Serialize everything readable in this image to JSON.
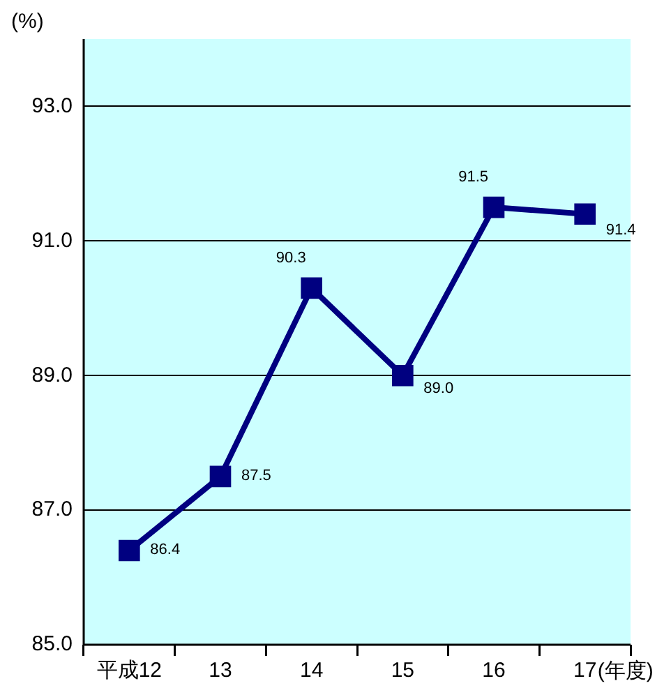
{
  "chart_data": {
    "type": "line",
    "ylabel": "(%)",
    "xlabel": "(年度)",
    "categories": [
      "平成12",
      "13",
      "14",
      "15",
      "16",
      "17"
    ],
    "series": [
      {
        "color": "#000080",
        "values": [
          86.4,
          87.5,
          90.3,
          89.0,
          91.5,
          91.4
        ],
        "value_labels": [
          "86.4",
          "87.5",
          "90.3",
          "89.0",
          "91.5",
          "91.4"
        ]
      }
    ],
    "ylim": [
      85,
      94
    ],
    "yticks": [
      {
        "value": 85,
        "label": "85.0"
      },
      {
        "value": 87,
        "label": "87.0"
      },
      {
        "value": 89,
        "label": "89.0"
      },
      {
        "value": 91,
        "label": "91.0"
      },
      {
        "value": 93,
        "label": "93.0"
      }
    ],
    "grid": "y",
    "legend": false,
    "marker": "square",
    "line_style": "solid"
  }
}
